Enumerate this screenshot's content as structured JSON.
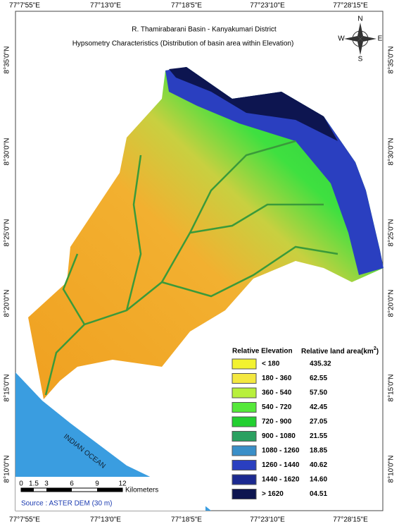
{
  "top_labels": [
    "77°7'55\"E",
    "77°13'0\"E",
    "77°18'5\"E",
    "77°23'10\"E",
    "77°28'15\"E"
  ],
  "bottom_labels": [
    "77°7'55\"E",
    "77°13'0\"E",
    "77°18'5\"E",
    "77°23'10\"E",
    "77°28'15\"E"
  ],
  "left_labels": [
    "8°35'0\"N",
    "8°30'0\"N",
    "8°25'0\"N",
    "8°20'0\"N",
    "8°15'0\"N",
    "8°10'0\"N"
  ],
  "right_labels": [
    "8°35'0\"N",
    "8°30'0\"N",
    "8°25'0\"N",
    "8°20'0\"N",
    "8°15'0\"N",
    "8°10'0\"N"
  ],
  "title": "R. Thamirabarani Basin - Kanyakumari District",
  "subtitle": "Hypsometry Characteristics (Distribution of basin area within Elevation)",
  "compass": {
    "n": "N",
    "s": "S",
    "e": "E",
    "w": "W"
  },
  "ocean_label": "INDIAN OCEAN",
  "legend": {
    "header_elevation": "Relative Elevation",
    "header_area": "Relative land area(km",
    "header_area_sup": "2",
    "header_area_end": ")",
    "rows": [
      {
        "range": "< 180",
        "area": "435.32",
        "color": "#f2f230"
      },
      {
        "range": "180 - 360",
        "area": "62.55",
        "color": "#f4e840"
      },
      {
        "range": "360 - 540",
        "area": "57.50",
        "color": "#b8f03c"
      },
      {
        "range": "540 - 720",
        "area": "42.45",
        "color": "#55e83a"
      },
      {
        "range": "720 - 900",
        "area": "27.05",
        "color": "#22d030"
      },
      {
        "range": "900 - 1080",
        "area": "21.55",
        "color": "#2aa060"
      },
      {
        "range": "1080 - 1260",
        "area": "18.85",
        "color": "#3a8fc8"
      },
      {
        "range": "1260 - 1440",
        "area": "40.62",
        "color": "#2a3fc0"
      },
      {
        "range": "1440 - 1620",
        "area": "14.60",
        "color": "#1c2a90"
      },
      {
        "range": "> 1620",
        "area": "04.51",
        "color": "#0d1550"
      }
    ]
  },
  "scale": {
    "ticks": [
      "0",
      "1.5",
      "3",
      "6",
      "9",
      "12"
    ],
    "unit": "Kilometers"
  },
  "source": "Source : ASTER DEM (30 m)"
}
